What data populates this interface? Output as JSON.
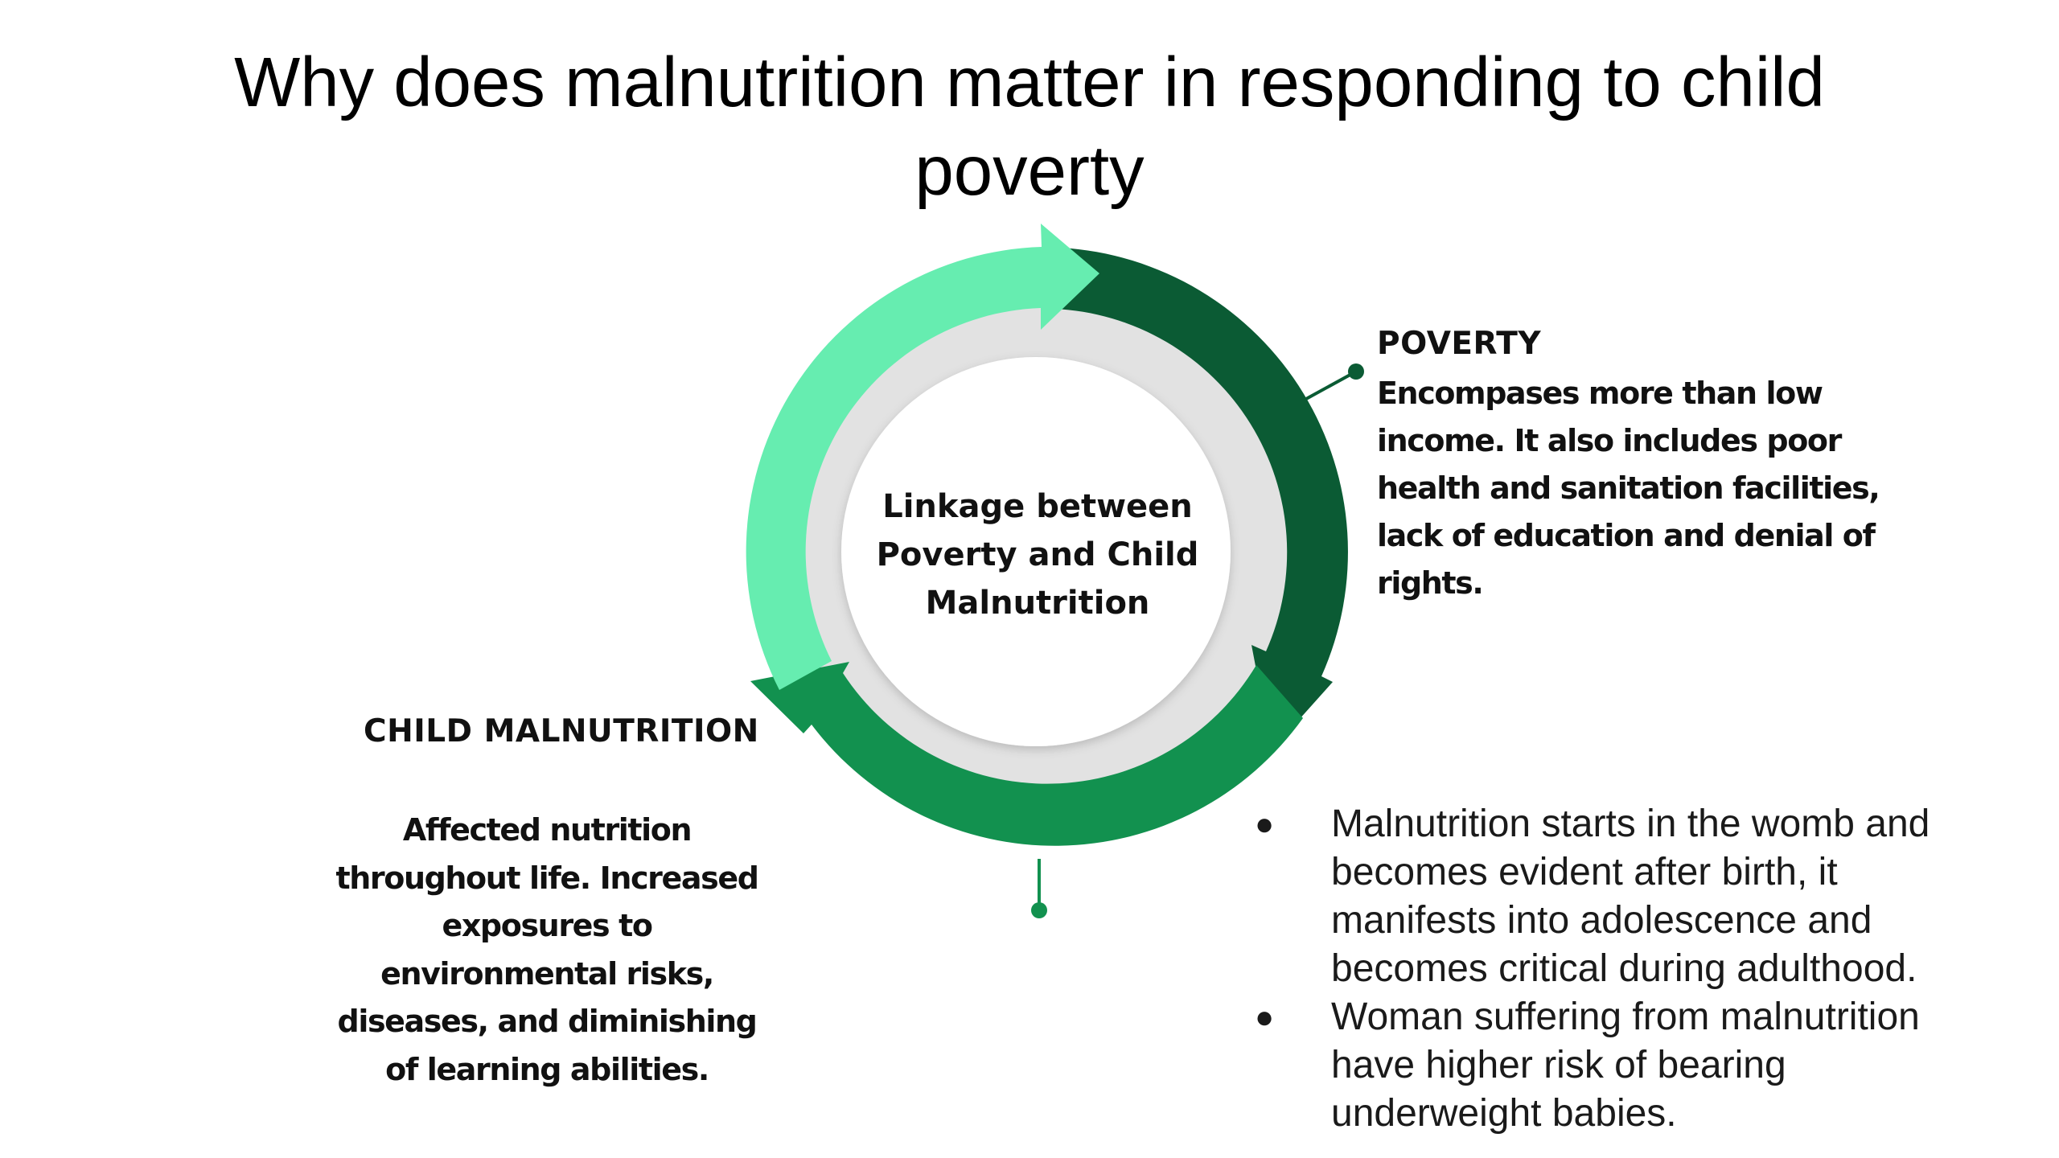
{
  "title": {
    "line1": "Why does malnutrition matter in responding to child",
    "line2": "poverty"
  },
  "center": {
    "line1": "Linkage between",
    "line2": "Poverty and Child",
    "line3": "Malnutrition"
  },
  "poverty": {
    "heading": "POVERTY",
    "lines": [
      "Encompases more than low",
      "income. It also includes poor",
      "health and sanitation facilities,",
      "lack of education and denial of",
      "rights."
    ]
  },
  "child_malnutrition": {
    "heading": "CHILD MALNUTRITION",
    "lines": [
      "Affected nutrition",
      "throughout life. Increased",
      "exposures to",
      "environmental risks,",
      "diseases, and diminishing",
      "of learning abilities."
    ]
  },
  "bullets": [
    {
      "marker": "●",
      "lines": [
        "Malnutrition starts in the womb and",
        "becomes evident after birth, it",
        "manifests into adolescence and",
        "becomes critical during adulthood."
      ]
    },
    {
      "marker": "●",
      "lines": [
        "Woman suffering from malnutrition",
        "have higher risk of bearing",
        "underweight babies."
      ]
    }
  ],
  "colors": {
    "dark_green": "#0b5b34",
    "mid_green": "#12914f",
    "light_green": "#66edb0",
    "inner_circle": "#e2e2e2",
    "connector": "#0b5b34"
  }
}
